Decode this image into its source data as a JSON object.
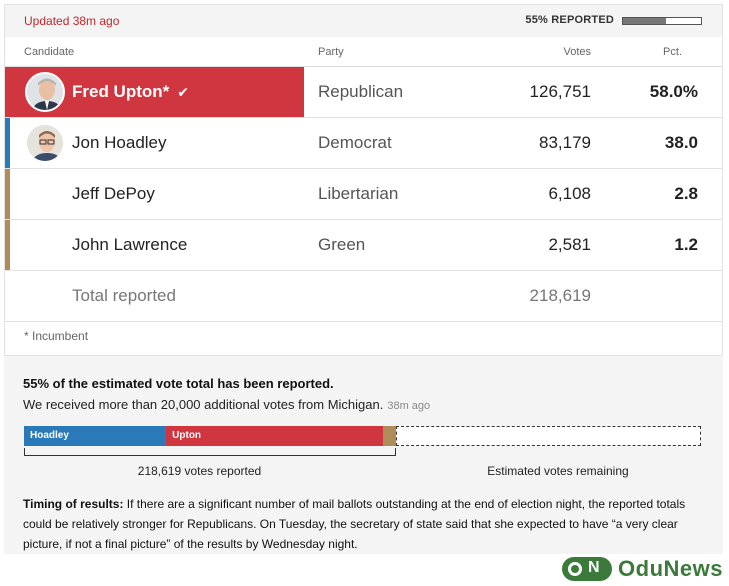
{
  "header": {
    "updated": "Updated 38m ago",
    "reported_label": "55% REPORTED",
    "reported_fraction": 0.55
  },
  "columns": {
    "candidate": "Candidate",
    "party": "Party",
    "votes": "Votes",
    "pct": "Pct."
  },
  "rows": [
    {
      "name": "Fred Upton*",
      "party": "Republican",
      "votes": "126,751",
      "pct": "58.0%",
      "winner": true,
      "color": "#d0363f"
    },
    {
      "name": "Jon Hoadley",
      "party": "Democrat",
      "votes": "83,179",
      "pct": "38.0",
      "winner": false,
      "color": "#2a7ab9"
    },
    {
      "name": "Jeff DePoy",
      "party": "Libertarian",
      "votes": "6,108",
      "pct": "2.8",
      "winner": false,
      "color": "#b08d58"
    },
    {
      "name": "John Lawrence",
      "party": "Green",
      "votes": "2,581",
      "pct": "1.2",
      "winner": false,
      "color": "#b08d58"
    }
  ],
  "total": {
    "label": "Total reported",
    "votes": "218,619"
  },
  "footnote": "* Incumbent",
  "estimate": {
    "headline": "55% of the estimated vote total has been reported.",
    "subline": "We received more than 20,000 additional votes from Michigan.",
    "subline_ago": "38m ago",
    "bar": [
      {
        "label": "Hoadley",
        "share": 0.21,
        "color": "#2a7ab9"
      },
      {
        "label": "Upton",
        "share": 0.32,
        "color": "#d0363f"
      },
      {
        "label": "",
        "share": 0.02,
        "color": "#b08d58"
      }
    ],
    "reported_caption": "218,619 votes reported",
    "remaining_caption": "Estimated votes remaining"
  },
  "timing": {
    "label": "Timing of results:",
    "text": " If there are a significant number of mail ballots outstanding at the end of election night, the reported totals could be relatively stronger for Republicans. On Tuesday, the secretary of state said that she expected to have “a very clear picture, if not a final picture” of the results by Wednesday night."
  },
  "watermark": {
    "text": "OduNews"
  }
}
